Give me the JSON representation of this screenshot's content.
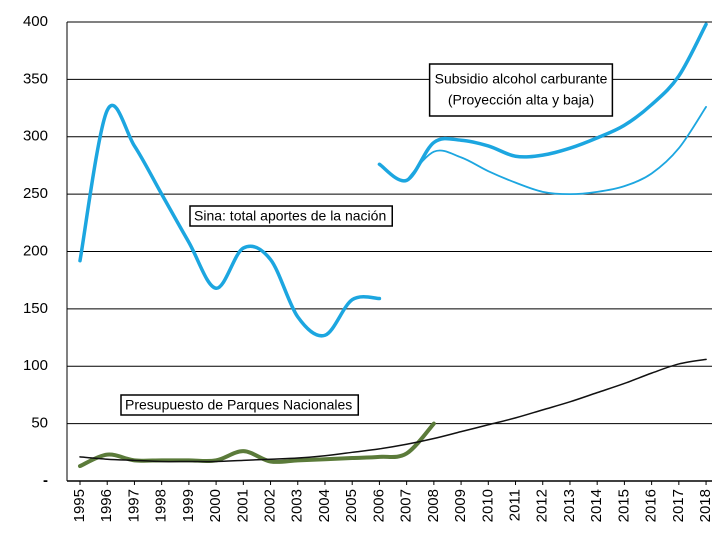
{
  "chart_data": {
    "type": "line",
    "categories": [
      "1995",
      "1996",
      "1997",
      "1998",
      "1999",
      "2000",
      "2001",
      "2002",
      "2003",
      "2004",
      "2005",
      "2006",
      "2007",
      "2008",
      "2009",
      "2010",
      "2011",
      "2012",
      "2013",
      "2014",
      "2015",
      "2016",
      "2017",
      "2018"
    ],
    "series": [
      {
        "name": "Sina: total aportes de la nación",
        "color": "#1ca6e0",
        "width": 3.5,
        "values": [
          192,
          323,
          292,
          250,
          208,
          168,
          203,
          193,
          143,
          127,
          158,
          159,
          null,
          null,
          null,
          null,
          null,
          null,
          null,
          null,
          null,
          null,
          null,
          null
        ]
      },
      {
        "color": "#1ca6e0",
        "width": 3.5,
        "values": [
          null,
          null,
          null,
          null,
          null,
          null,
          null,
          null,
          null,
          null,
          null,
          276,
          262,
          295,
          297,
          292,
          283,
          284,
          290,
          299,
          310,
          328,
          353,
          398
        ]
      },
      {
        "color": "#1ca6e0",
        "width": 1.8,
        "values": [
          null,
          null,
          null,
          null,
          null,
          null,
          null,
          null,
          null,
          null,
          null,
          null,
          262,
          287,
          282,
          270,
          260,
          252,
          250,
          252,
          257,
          268,
          290,
          326
        ]
      },
      {
        "name": "Presupuesto de Parques Nacionales",
        "color": "#5b7b3a",
        "width": 4,
        "values": [
          13,
          23,
          18,
          18,
          18,
          18,
          26,
          17,
          18,
          19,
          20,
          21,
          24,
          50,
          null,
          null,
          null,
          null,
          null,
          null,
          null,
          null,
          null,
          null
        ]
      },
      {
        "color": "#111111",
        "width": 1.5,
        "values": [
          21,
          19,
          18,
          17,
          17,
          17,
          18,
          19,
          20,
          22,
          25,
          28,
          32,
          37,
          43,
          49,
          55,
          62,
          69,
          77,
          85,
          94,
          102,
          106
        ]
      }
    ],
    "annotations": [
      {
        "lines": [
          "Subsidio alcohol carburante",
          "(Proyección alta y baja)"
        ]
      }
    ],
    "ylim": [
      0,
      400
    ],
    "yticks": [
      {
        "value": 0,
        "label": "-"
      },
      50,
      100,
      150,
      200,
      250,
      300,
      350,
      400
    ],
    "grid": true
  }
}
